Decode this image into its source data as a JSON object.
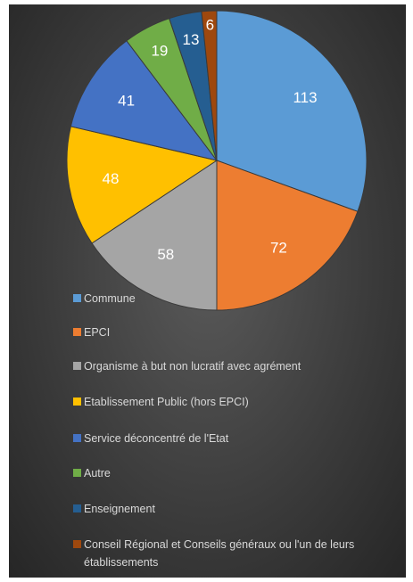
{
  "chart_data": {
    "type": "pie",
    "categories": [
      "Commune",
      "EPCI",
      "Organisme à but non lucratif avec agrément",
      "Etablissement Public (hors EPCI)",
      "Service déconcentré de l'Etat",
      "Autre",
      "Enseignement",
      "Conseil Régional et Conseils généraux ou l'un de leurs établissements"
    ],
    "values": [
      113,
      72,
      58,
      48,
      41,
      19,
      13,
      6
    ],
    "colors": [
      "#5b9bd5",
      "#ed7d31",
      "#a5a5a5",
      "#ffc000",
      "#4472c4",
      "#70ad47",
      "#255e91",
      "#9e480e"
    ],
    "legend": "bottom"
  }
}
